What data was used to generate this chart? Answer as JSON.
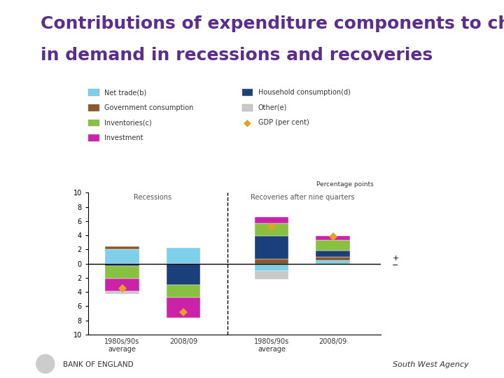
{
  "title_line1": "Contributions of expenditure components to changes",
  "title_line2": "in demand in recessions and recoveries",
  "title_fontsize": 18,
  "title_color": "#5b2d8e",
  "background_color": "#ffffff",
  "colors": {
    "net_trade": "#7ecfea",
    "household_consumption": "#1a3f7a",
    "government_consumption": "#8B5A2B",
    "other": "#c8c8c8",
    "inventories": "#88c040",
    "investment": "#cc22aa",
    "gdp_marker": "#e8a020"
  },
  "legend_labels": {
    "net_trade": "Net trade(b)",
    "household_consumption": "Household consumption(d)",
    "government_consumption": "Government consumption",
    "other": "Other(e)",
    "inventories": "Inventories(c)",
    "gdp": "GDP (per cent)",
    "investment": "Investment"
  },
  "bars": {
    "rec_1980s": {
      "net_trade": 2.0,
      "government_consumption": 0.4,
      "household_consumption": -0.3,
      "investment": -1.8,
      "inventories": -1.8,
      "other": -0.4,
      "gdp": -3.5
    },
    "rec_2008": {
      "net_trade": 2.2,
      "government_consumption": 0.0,
      "household_consumption": -3.0,
      "investment": -2.8,
      "inventories": -1.8,
      "other": 0.0,
      "gdp": -6.8
    },
    "rec_1980s_recovery": {
      "household_consumption": 3.2,
      "government_consumption": 0.7,
      "inventories": 1.8,
      "investment": 0.9,
      "net_trade": -1.0,
      "other": -1.2,
      "gdp": 5.2
    },
    "rec_2008_recovery": {
      "household_consumption": 0.8,
      "government_consumption": 0.5,
      "inventories": 1.5,
      "investment": 0.6,
      "net_trade": 0.5,
      "other": 0.0,
      "gdp": 3.8
    }
  },
  "footer_right": "South West Agency",
  "ylim": [
    -10,
    10
  ],
  "yticks": [
    -10,
    -8,
    -6,
    -4,
    -2,
    0,
    2,
    4,
    6,
    8,
    10
  ]
}
